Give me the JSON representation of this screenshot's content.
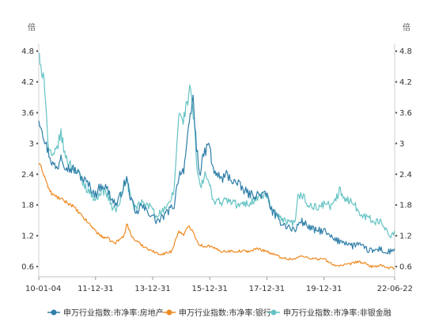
{
  "chart_data": {
    "type": "line",
    "title": "",
    "y_unit_left": "倍",
    "y_unit_right": "倍",
    "y_ticks": [
      "0.6",
      "1.2",
      "1.8",
      "2.4",
      "3",
      "3.6",
      "4.2",
      "4.8"
    ],
    "ylim": [
      0.4,
      4.95
    ],
    "x_ticks": [
      "10-01-04",
      "11-12-31",
      "13-12-31",
      "15-12-31",
      "17-12-31",
      "19-12-31",
      "22-06-22"
    ],
    "x_range": [
      "2010-01-04",
      "2022-06-22"
    ],
    "grid": false,
    "legend_position": "bottom",
    "colors": {
      "real_estate": "#2f7ea8",
      "bank": "#ee8a22",
      "non_bank": "#66c3c4"
    },
    "series": [
      {
        "name": "申万行业指数:市净率:房地产",
        "key": "real_estate",
        "points": [
          [
            "2010-01-04",
            3.5
          ],
          [
            "2010-02-15",
            3.3
          ],
          [
            "2010-04-01",
            3.0
          ],
          [
            "2010-05-15",
            2.8
          ],
          [
            "2010-07-01",
            2.6
          ],
          [
            "2010-09-01",
            2.5
          ],
          [
            "2010-10-15",
            2.8
          ],
          [
            "2010-12-01",
            2.6
          ],
          [
            "2011-02-01",
            2.5
          ],
          [
            "2011-04-01",
            2.5
          ],
          [
            "2011-06-01",
            2.4
          ],
          [
            "2011-08-01",
            2.3
          ],
          [
            "2011-10-01",
            2.2
          ],
          [
            "2011-12-31",
            2.0
          ],
          [
            "2012-02-01",
            2.1
          ],
          [
            "2012-04-01",
            2.2
          ],
          [
            "2012-06-01",
            2.1
          ],
          [
            "2012-08-01",
            1.9
          ],
          [
            "2012-10-01",
            1.8
          ],
          [
            "2012-12-31",
            2.2
          ],
          [
            "2013-02-01",
            2.3
          ],
          [
            "2013-04-01",
            1.9
          ],
          [
            "2013-06-01",
            1.6
          ],
          [
            "2013-08-01",
            1.8
          ],
          [
            "2013-10-01",
            1.7
          ],
          [
            "2013-12-31",
            1.6
          ],
          [
            "2014-02-01",
            1.5
          ],
          [
            "2014-04-01",
            1.5
          ],
          [
            "2014-06-01",
            1.6
          ],
          [
            "2014-08-01",
            1.7
          ],
          [
            "2014-10-01",
            1.8
          ],
          [
            "2014-12-01",
            2.4
          ],
          [
            "2015-02-01",
            2.5
          ],
          [
            "2015-04-01",
            3.2
          ],
          [
            "2015-06-01",
            3.9
          ],
          [
            "2015-07-15",
            2.9
          ],
          [
            "2015-09-01",
            2.4
          ],
          [
            "2015-10-15",
            2.8
          ],
          [
            "2015-12-31",
            3.0
          ],
          [
            "2016-02-01",
            2.5
          ],
          [
            "2016-04-01",
            2.4
          ],
          [
            "2016-06-01",
            2.3
          ],
          [
            "2016-08-01",
            2.4
          ],
          [
            "2016-10-01",
            2.3
          ],
          [
            "2016-12-31",
            2.2
          ],
          [
            "2017-03-01",
            2.1
          ],
          [
            "2017-06-01",
            2.0
          ],
          [
            "2017-09-01",
            2.0
          ],
          [
            "2017-12-31",
            2.0
          ],
          [
            "2018-03-01",
            1.7
          ],
          [
            "2018-06-01",
            1.5
          ],
          [
            "2018-09-01",
            1.4
          ],
          [
            "2018-12-31",
            1.3
          ],
          [
            "2019-03-01",
            1.5
          ],
          [
            "2019-06-01",
            1.4
          ],
          [
            "2019-09-01",
            1.3
          ],
          [
            "2019-12-31",
            1.3
          ],
          [
            "2020-03-01",
            1.2
          ],
          [
            "2020-06-01",
            1.1
          ],
          [
            "2020-09-01",
            1.1
          ],
          [
            "2020-12-31",
            1.0
          ],
          [
            "2021-03-01",
            1.05
          ],
          [
            "2021-06-01",
            0.95
          ],
          [
            "2021-09-01",
            0.9
          ],
          [
            "2021-12-31",
            0.95
          ],
          [
            "2022-03-01",
            0.85
          ],
          [
            "2022-06-22",
            0.95
          ]
        ]
      },
      {
        "name": "申万行业指数:市净率:银行",
        "key": "bank",
        "points": [
          [
            "2010-01-04",
            2.6
          ],
          [
            "2010-02-15",
            2.5
          ],
          [
            "2010-04-01",
            2.3
          ],
          [
            "2010-05-15",
            2.1
          ],
          [
            "2010-07-01",
            2.0
          ],
          [
            "2010-09-01",
            1.95
          ],
          [
            "2010-11-01",
            1.9
          ],
          [
            "2011-01-01",
            1.85
          ],
          [
            "2011-03-01",
            1.8
          ],
          [
            "2011-05-01",
            1.7
          ],
          [
            "2011-07-01",
            1.6
          ],
          [
            "2011-09-01",
            1.5
          ],
          [
            "2011-12-31",
            1.3
          ],
          [
            "2012-03-01",
            1.2
          ],
          [
            "2012-06-01",
            1.15
          ],
          [
            "2012-09-01",
            1.05
          ],
          [
            "2012-12-31",
            1.2
          ],
          [
            "2013-02-01",
            1.45
          ],
          [
            "2013-04-01",
            1.2
          ],
          [
            "2013-06-01",
            1.1
          ],
          [
            "2013-09-01",
            1.0
          ],
          [
            "2013-12-31",
            0.9
          ],
          [
            "2014-03-01",
            0.85
          ],
          [
            "2014-06-01",
            0.85
          ],
          [
            "2014-09-01",
            0.9
          ],
          [
            "2014-12-01",
            1.3
          ],
          [
            "2015-02-01",
            1.2
          ],
          [
            "2015-04-01",
            1.4
          ],
          [
            "2015-06-01",
            1.3
          ],
          [
            "2015-08-01",
            1.05
          ],
          [
            "2015-10-01",
            1.0
          ],
          [
            "2015-12-31",
            1.0
          ],
          [
            "2016-03-01",
            0.95
          ],
          [
            "2016-06-01",
            0.9
          ],
          [
            "2016-09-01",
            0.9
          ],
          [
            "2016-12-31",
            0.9
          ],
          [
            "2017-03-01",
            0.9
          ],
          [
            "2017-06-01",
            0.9
          ],
          [
            "2017-09-01",
            0.95
          ],
          [
            "2017-12-31",
            0.9
          ],
          [
            "2018-03-01",
            0.85
          ],
          [
            "2018-06-01",
            0.8
          ],
          [
            "2018-09-01",
            0.75
          ],
          [
            "2018-12-31",
            0.75
          ],
          [
            "2019-03-01",
            0.8
          ],
          [
            "2019-06-01",
            0.78
          ],
          [
            "2019-09-01",
            0.75
          ],
          [
            "2019-12-31",
            0.75
          ],
          [
            "2020-03-01",
            0.68
          ],
          [
            "2020-06-01",
            0.62
          ],
          [
            "2020-09-01",
            0.62
          ],
          [
            "2020-12-31",
            0.66
          ],
          [
            "2021-03-01",
            0.7
          ],
          [
            "2021-06-01",
            0.66
          ],
          [
            "2021-09-01",
            0.6
          ],
          [
            "2021-12-31",
            0.62
          ],
          [
            "2022-03-01",
            0.58
          ],
          [
            "2022-06-22",
            0.56
          ]
        ]
      },
      {
        "name": "申万行业指数:市净率:非银金融",
        "key": "non_bank",
        "points": [
          [
            "2010-01-04",
            4.8
          ],
          [
            "2010-01-20",
            4.5
          ],
          [
            "2010-02-10",
            4.3
          ],
          [
            "2010-03-01",
            4.5
          ],
          [
            "2010-04-01",
            3.9
          ],
          [
            "2010-05-01",
            3.0
          ],
          [
            "2010-06-15",
            2.7
          ],
          [
            "2010-08-01",
            2.8
          ],
          [
            "2010-10-15",
            3.2
          ],
          [
            "2010-12-01",
            2.8
          ],
          [
            "2011-02-01",
            2.6
          ],
          [
            "2011-04-01",
            2.5
          ],
          [
            "2011-06-01",
            2.4
          ],
          [
            "2011-08-01",
            2.2
          ],
          [
            "2011-10-01",
            2.1
          ],
          [
            "2011-12-31",
            1.9
          ],
          [
            "2012-02-01",
            2.0
          ],
          [
            "2012-04-01",
            2.1
          ],
          [
            "2012-06-01",
            2.0
          ],
          [
            "2012-08-01",
            1.75
          ],
          [
            "2012-10-01",
            1.7
          ],
          [
            "2012-12-31",
            2.2
          ],
          [
            "2013-02-01",
            2.3
          ],
          [
            "2013-04-01",
            1.9
          ],
          [
            "2013-06-01",
            1.7
          ],
          [
            "2013-08-01",
            1.85
          ],
          [
            "2013-10-01",
            1.8
          ],
          [
            "2013-12-31",
            1.75
          ],
          [
            "2014-02-01",
            1.6
          ],
          [
            "2014-04-01",
            1.65
          ],
          [
            "2014-06-01",
            1.7
          ],
          [
            "2014-08-01",
            1.8
          ],
          [
            "2014-10-01",
            2.1
          ],
          [
            "2014-12-01",
            3.6
          ],
          [
            "2015-01-15",
            3.4
          ],
          [
            "2015-03-01",
            3.7
          ],
          [
            "2015-05-01",
            4.1
          ],
          [
            "2015-06-15",
            3.4
          ],
          [
            "2015-07-15",
            2.6
          ],
          [
            "2015-09-01",
            2.1
          ],
          [
            "2015-11-01",
            2.4
          ],
          [
            "2015-12-31",
            2.2
          ],
          [
            "2016-02-01",
            1.9
          ],
          [
            "2016-04-01",
            1.9
          ],
          [
            "2016-06-01",
            1.85
          ],
          [
            "2016-08-01",
            1.9
          ],
          [
            "2016-10-01",
            1.85
          ],
          [
            "2016-12-31",
            1.8
          ],
          [
            "2017-03-01",
            1.8
          ],
          [
            "2017-06-01",
            1.85
          ],
          [
            "2017-09-01",
            1.95
          ],
          [
            "2017-12-31",
            2.0
          ],
          [
            "2018-02-01",
            1.8
          ],
          [
            "2018-04-01",
            1.65
          ],
          [
            "2018-06-01",
            1.55
          ],
          [
            "2018-09-01",
            1.45
          ],
          [
            "2018-12-31",
            1.45
          ],
          [
            "2019-02-01",
            1.95
          ],
          [
            "2019-04-01",
            2.0
          ],
          [
            "2019-06-01",
            1.8
          ],
          [
            "2019-09-01",
            1.75
          ],
          [
            "2019-12-31",
            1.8
          ],
          [
            "2020-02-01",
            1.85
          ],
          [
            "2020-04-01",
            1.75
          ],
          [
            "2020-06-01",
            1.9
          ],
          [
            "2020-07-15",
            2.1
          ],
          [
            "2020-09-01",
            1.9
          ],
          [
            "2020-12-31",
            1.9
          ],
          [
            "2021-03-01",
            1.7
          ],
          [
            "2021-06-01",
            1.6
          ],
          [
            "2021-09-01",
            1.5
          ],
          [
            "2021-12-31",
            1.45
          ],
          [
            "2022-03-01",
            1.35
          ],
          [
            "2022-04-20",
            1.2
          ],
          [
            "2022-06-22",
            1.3
          ]
        ]
      }
    ]
  }
}
